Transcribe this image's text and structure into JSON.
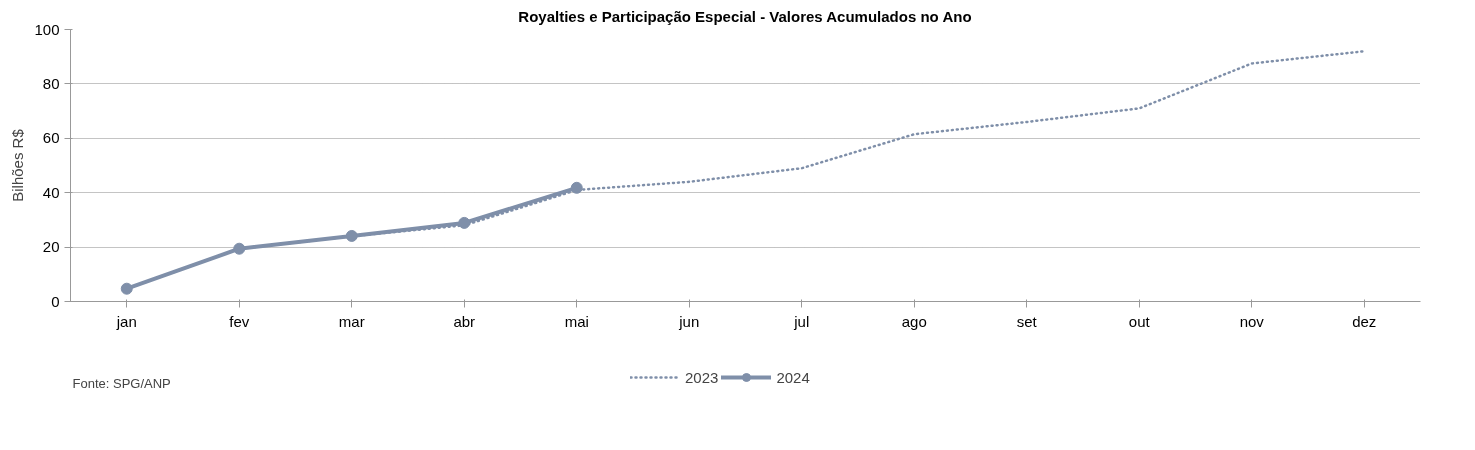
{
  "chart_data": {
    "type": "line",
    "title": "Royalties e Participação Especial - Valores Acumulados no Ano",
    "ylabel": "Bilhões R$",
    "categories": [
      "jan",
      "fev",
      "mar",
      "abr",
      "mai",
      "jun",
      "jul",
      "ago",
      "set",
      "out",
      "nov",
      "dez"
    ],
    "series": [
      {
        "name": "2023",
        "color": "#7f8fa9",
        "line_style": "dotted",
        "marker": "none",
        "values": [
          4.7,
          19.4,
          24,
          28,
          41,
          44,
          49,
          61.5,
          66,
          71,
          87.5,
          92
        ]
      },
      {
        "name": "2024",
        "color": "#7f8fa9",
        "line_style": "solid",
        "marker": "circle",
        "values": [
          4.7,
          19.4,
          24.1,
          28.9,
          41.8,
          null,
          null,
          null,
          null,
          null,
          null,
          null
        ]
      }
    ],
    "ylim": [
      0,
      100
    ],
    "yticks": [
      0,
      20,
      40,
      60,
      80,
      100
    ],
    "grid": "y",
    "legend": "bottom",
    "annotations": [
      "Fonte: SPG/ANP"
    ]
  }
}
